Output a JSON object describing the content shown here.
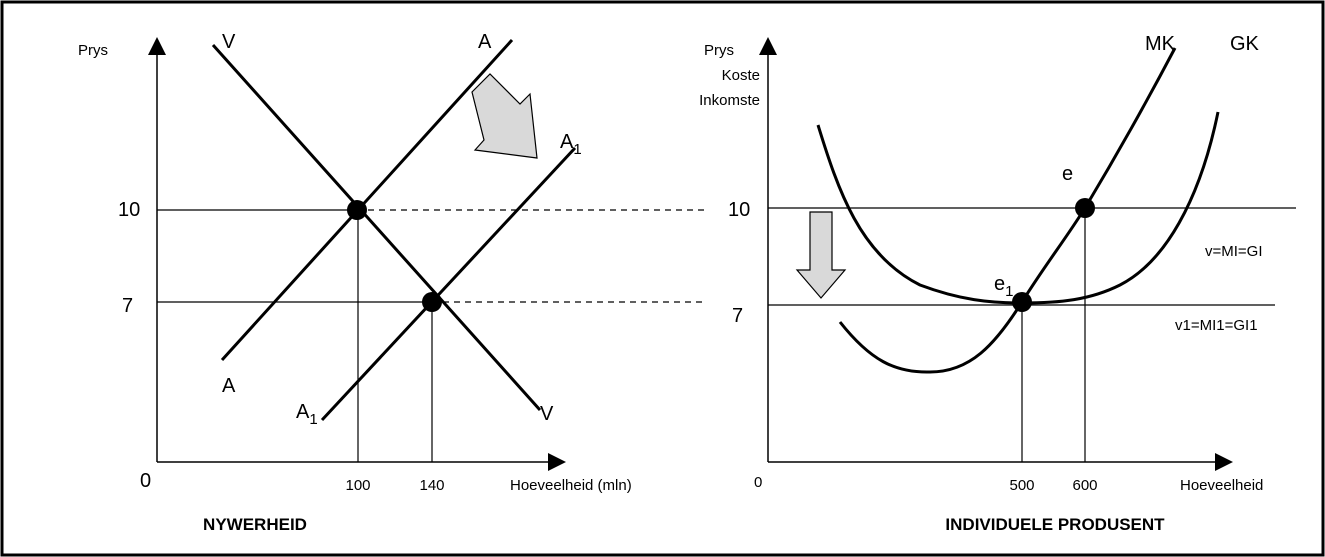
{
  "industry": {
    "y_axis_label": "Prys",
    "origin": "0",
    "price_high": "10",
    "price_low": "7",
    "q_high": "100",
    "q_low": "140",
    "x_axis_label": "Hoeveelheid (mln)",
    "title": "NYWERHEID",
    "demand_top": "V",
    "demand_bottom": "V",
    "supply_top": "A",
    "supply_bottom": "A",
    "supply1_top": {
      "main": "A",
      "sub": "1"
    },
    "supply1_bottom": {
      "main": "A",
      "sub": "1"
    }
  },
  "producer": {
    "y_axis_label": [
      "Prys",
      "Koste",
      "Inkomste"
    ],
    "origin": "0",
    "price_high": "10",
    "price_low": "7",
    "q_low": "500",
    "q_high": "600",
    "x_axis_label": "Hoeveelheid",
    "title": "INDIVIDUELE PRODUSENT",
    "mc_label": "MK",
    "ac_label": "GK",
    "point_e": "e",
    "point_e1": {
      "main": "e",
      "sub": "1"
    },
    "price_line_high": "v=MI=GI",
    "price_line_low": "v1=MI1=GI1"
  }
}
